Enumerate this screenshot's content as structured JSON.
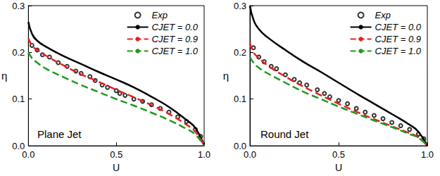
{
  "chart_data": [
    {
      "type": "line",
      "annotation": "Plane Jet",
      "x_label": "U",
      "y_label": "η",
      "xlim": [
        0,
        1
      ],
      "xticks": [
        {
          "value": 0,
          "label": "0.0"
        },
        0.5,
        {
          "value": 1,
          "label": "1.0"
        }
      ],
      "ylim": [
        0,
        0.3
      ],
      "yticks": [
        {
          "value": 0,
          "label": "0.0"
        },
        0.1,
        0.2,
        0.3
      ],
      "grid": false,
      "legend": "upper right",
      "series": [
        {
          "name": "Exp",
          "type": "scatter",
          "marker": "open circle",
          "color": "#000000",
          "x": [
            0.02,
            0.05,
            0.08,
            0.12,
            0.17,
            0.22,
            0.27,
            0.3,
            0.35,
            0.38,
            0.42,
            0.45,
            0.5,
            0.52,
            0.55,
            0.6,
            0.65,
            0.7,
            0.75,
            0.8,
            0.85,
            0.9,
            0.95,
            0.98
          ],
          "values": [
            0.215,
            0.205,
            0.195,
            0.19,
            0.178,
            0.17,
            0.16,
            0.155,
            0.148,
            0.14,
            0.13,
            0.125,
            0.118,
            0.112,
            0.108,
            0.1,
            0.095,
            0.088,
            0.08,
            0.072,
            0.062,
            0.052,
            0.035,
            0.02
          ]
        },
        {
          "name": "CJET = 0.0",
          "type": "line",
          "line_style": "solid",
          "color": "#000000",
          "x": [
            0,
            0.02,
            0.05,
            0.1,
            0.2,
            0.3,
            0.4,
            0.5,
            0.6,
            0.7,
            0.8,
            0.9,
            0.95,
            1.0
          ],
          "values": [
            0.265,
            0.24,
            0.225,
            0.212,
            0.192,
            0.175,
            0.158,
            0.142,
            0.125,
            0.105,
            0.083,
            0.055,
            0.038,
            0.0
          ]
        },
        {
          "name": "CJET = 0.9",
          "type": "line",
          "line_style": "dashed",
          "color": "#e8201e",
          "x": [
            0,
            0.02,
            0.05,
            0.1,
            0.2,
            0.3,
            0.4,
            0.5,
            0.6,
            0.7,
            0.8,
            0.9,
            0.95,
            1.0
          ],
          "values": [
            0.23,
            0.215,
            0.205,
            0.193,
            0.172,
            0.153,
            0.137,
            0.12,
            0.104,
            0.087,
            0.068,
            0.045,
            0.03,
            0.0
          ]
        },
        {
          "name": "CJET = 1.0",
          "type": "line",
          "line_style": "dashed",
          "color": "#1f9a1f",
          "x": [
            0,
            0.02,
            0.05,
            0.1,
            0.2,
            0.3,
            0.4,
            0.5,
            0.6,
            0.7,
            0.8,
            0.9,
            0.95,
            1.0
          ],
          "values": [
            0.2,
            0.188,
            0.178,
            0.165,
            0.147,
            0.13,
            0.115,
            0.1,
            0.086,
            0.071,
            0.055,
            0.036,
            0.024,
            0.0
          ]
        }
      ]
    },
    {
      "type": "line",
      "annotation": "Round Jet",
      "x_label": "U",
      "y_label": "η",
      "xlim": [
        0,
        1
      ],
      "xticks": [
        {
          "value": 0,
          "label": "0.0"
        },
        0.5,
        {
          "value": 1,
          "label": "1.0"
        }
      ],
      "ylim": [
        0,
        0.3
      ],
      "yticks": [
        {
          "value": 0,
          "label": "0.0"
        },
        0.1,
        0.2,
        0.3
      ],
      "grid": false,
      "legend": "upper right",
      "series": [
        {
          "name": "Exp",
          "type": "scatter",
          "marker": "open circle",
          "color": "#000000",
          "x": [
            0.02,
            0.05,
            0.08,
            0.12,
            0.15,
            0.2,
            0.25,
            0.28,
            0.32,
            0.38,
            0.42,
            0.45,
            0.5,
            0.55,
            0.6,
            0.65,
            0.7,
            0.75,
            0.8,
            0.85,
            0.9,
            0.95,
            0.98
          ],
          "values": [
            0.21,
            0.19,
            0.18,
            0.17,
            0.165,
            0.152,
            0.142,
            0.135,
            0.13,
            0.12,
            0.112,
            0.105,
            0.097,
            0.09,
            0.08,
            0.072,
            0.065,
            0.058,
            0.05,
            0.043,
            0.035,
            0.025,
            0.015
          ]
        },
        {
          "name": "CJET = 0.0",
          "type": "line",
          "line_style": "solid",
          "color": "#000000",
          "x": [
            0,
            0.02,
            0.05,
            0.1,
            0.2,
            0.3,
            0.4,
            0.5,
            0.6,
            0.7,
            0.8,
            0.9,
            0.95,
            1.0
          ],
          "values": [
            0.3,
            0.27,
            0.25,
            0.232,
            0.205,
            0.18,
            0.158,
            0.135,
            0.112,
            0.09,
            0.068,
            0.045,
            0.03,
            0.0
          ]
        },
        {
          "name": "CJET = 0.9",
          "type": "line",
          "line_style": "dashed",
          "color": "#e8201e",
          "x": [
            0,
            0.02,
            0.05,
            0.1,
            0.2,
            0.3,
            0.4,
            0.5,
            0.6,
            0.7,
            0.8,
            0.9,
            0.95,
            1.0
          ],
          "values": [
            0.22,
            0.2,
            0.188,
            0.172,
            0.148,
            0.127,
            0.108,
            0.09,
            0.073,
            0.057,
            0.042,
            0.027,
            0.018,
            0.0
          ]
        },
        {
          "name": "CJET = 1.0",
          "type": "line",
          "line_style": "dashed",
          "color": "#1f9a1f",
          "x": [
            0,
            0.02,
            0.05,
            0.1,
            0.2,
            0.3,
            0.4,
            0.5,
            0.6,
            0.7,
            0.8,
            0.9,
            0.95,
            1.0
          ],
          "values": [
            0.19,
            0.178,
            0.167,
            0.155,
            0.135,
            0.116,
            0.1,
            0.084,
            0.069,
            0.054,
            0.04,
            0.025,
            0.017,
            0.0
          ]
        }
      ]
    }
  ]
}
